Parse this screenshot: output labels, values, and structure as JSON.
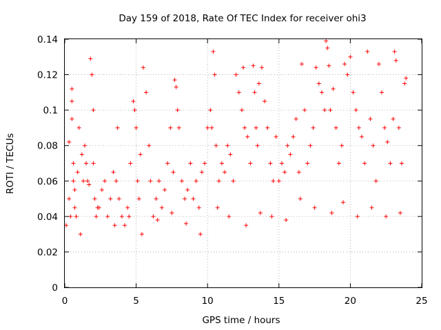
{
  "chart_data": {
    "type": "scatter",
    "title": "Day 159 of 2018, Rate Of TEC Index for receiver ohi3",
    "xlabel": "GPS time / hours",
    "ylabel": "ROTI / TECUs",
    "xlim": [
      0,
      25
    ],
    "ylim": [
      0,
      0.14
    ],
    "x_ticks": [
      0,
      5,
      10,
      15,
      20,
      25
    ],
    "y_ticks": [
      0,
      0.02,
      0.04,
      0.06,
      0.08,
      0.1,
      0.12,
      0.14
    ],
    "x_tick_labels": [
      "0",
      "5",
      "10",
      "15",
      "20",
      "25"
    ],
    "y_tick_labels": [
      "0",
      "0.02",
      "0.04",
      "0.06",
      "0.08",
      "0.1",
      "0.12",
      "0.14"
    ],
    "grid": true,
    "marker": "+",
    "series": [
      {
        "name": "ROTI",
        "color": "#ff0000",
        "x": [
          0.1,
          0.3,
          0.3,
          0.5,
          0.5,
          0.5,
          0.6,
          0.6,
          0.7,
          0.7,
          0.8,
          0.9,
          1.0,
          1.2,
          1.3,
          1.4,
          1.5,
          1.6,
          1.7,
          1.8,
          1.9,
          2.0,
          2.0,
          2.1,
          2.2,
          2.4,
          2.6,
          2.8,
          3.0,
          3.2,
          3.4,
          3.6,
          3.7,
          3.8,
          4.0,
          4.2,
          4.4,
          4.6,
          4.8,
          4.9,
          5.0,
          5.1,
          5.2,
          5.3,
          5.5,
          5.7,
          5.9,
          6.0,
          6.2,
          6.4,
          6.6,
          6.8,
          7.0,
          7.2,
          7.4,
          7.6,
          7.7,
          7.8,
          7.9,
          8.0,
          8.2,
          8.4,
          8.6,
          8.8,
          9.0,
          9.2,
          9.4,
          9.6,
          9.8,
          10.0,
          10.2,
          10.3,
          10.4,
          10.5,
          10.6,
          10.8,
          11.0,
          11.2,
          11.4,
          11.6,
          11.8,
          12.0,
          12.2,
          12.4,
          12.5,
          12.6,
          12.8,
          13.0,
          13.2,
          13.3,
          13.4,
          13.5,
          13.6,
          13.8,
          14.0,
          14.2,
          14.4,
          14.6,
          14.8,
          15.0,
          15.2,
          15.4,
          15.6,
          15.8,
          16.0,
          16.2,
          16.4,
          16.6,
          16.8,
          17.0,
          17.2,
          17.4,
          17.6,
          17.8,
          18.0,
          18.2,
          18.3,
          18.4,
          18.5,
          18.6,
          18.8,
          19.0,
          19.2,
          19.4,
          19.6,
          19.8,
          20.0,
          20.2,
          20.4,
          20.6,
          20.8,
          21.0,
          21.2,
          21.4,
          21.6,
          21.8,
          22.0,
          22.2,
          22.4,
          22.6,
          22.8,
          23.0,
          23.1,
          23.2,
          23.4,
          23.6,
          23.8,
          23.9,
          0.4,
          1.1,
          2.3,
          3.5,
          4.5,
          5.4,
          6.5,
          7.5,
          8.5,
          9.5,
          10.7,
          11.5,
          12.7,
          13.7,
          14.5,
          15.5,
          16.5,
          17.5,
          18.7,
          19.5,
          20.5,
          21.5,
          22.5,
          23.5
        ],
        "y": [
          0.035,
          0.05,
          0.082,
          0.105,
          0.112,
          0.095,
          0.06,
          0.07,
          0.055,
          0.045,
          0.04,
          0.065,
          0.09,
          0.075,
          0.06,
          0.08,
          0.07,
          0.06,
          0.058,
          0.129,
          0.12,
          0.1,
          0.07,
          0.05,
          0.04,
          0.045,
          0.055,
          0.06,
          0.04,
          0.05,
          0.065,
          0.06,
          0.09,
          0.05,
          0.04,
          0.035,
          0.045,
          0.07,
          0.105,
          0.1,
          0.09,
          0.06,
          0.05,
          0.075,
          0.124,
          0.11,
          0.08,
          0.06,
          0.04,
          0.05,
          0.06,
          0.045,
          0.055,
          0.07,
          0.09,
          0.065,
          0.117,
          0.113,
          0.1,
          0.09,
          0.06,
          0.05,
          0.055,
          0.07,
          0.05,
          0.06,
          0.045,
          0.065,
          0.07,
          0.09,
          0.1,
          0.09,
          0.133,
          0.12,
          0.08,
          0.06,
          0.07,
          0.065,
          0.08,
          0.075,
          0.06,
          0.12,
          0.11,
          0.1,
          0.124,
          0.09,
          0.085,
          0.07,
          0.125,
          0.11,
          0.09,
          0.08,
          0.115,
          0.124,
          0.105,
          0.09,
          0.07,
          0.06,
          0.085,
          0.06,
          0.07,
          0.065,
          0.08,
          0.075,
          0.085,
          0.095,
          0.065,
          0.126,
          0.1,
          0.07,
          0.08,
          0.09,
          0.124,
          0.115,
          0.11,
          0.1,
          0.139,
          0.135,
          0.125,
          0.1,
          0.112,
          0.09,
          0.07,
          0.08,
          0.126,
          0.12,
          0.13,
          0.11,
          0.1,
          0.09,
          0.085,
          0.07,
          0.133,
          0.095,
          0.08,
          0.06,
          0.126,
          0.11,
          0.09,
          0.082,
          0.07,
          0.095,
          0.133,
          0.128,
          0.09,
          0.07,
          0.115,
          0.118,
          0.04,
          0.03,
          0.045,
          0.035,
          0.04,
          0.03,
          0.038,
          0.042,
          0.036,
          0.03,
          0.045,
          0.04,
          0.035,
          0.042,
          0.04,
          0.038,
          0.05,
          0.045,
          0.042,
          0.048,
          0.04,
          0.045,
          0.04,
          0.042
        ]
      }
    ]
  }
}
